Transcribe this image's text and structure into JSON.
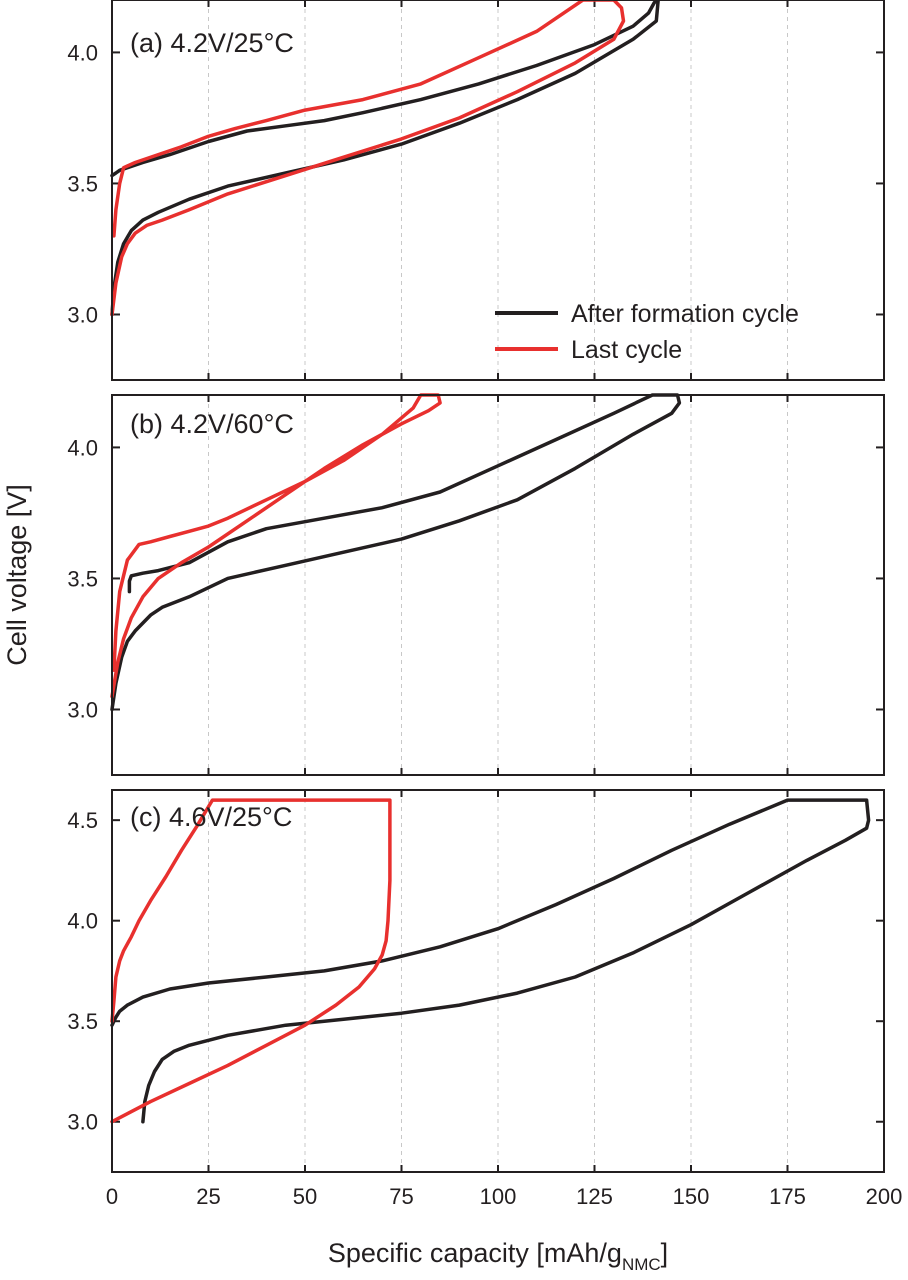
{
  "figure": {
    "ylabel": "Cell voltage [V]",
    "xlabel_main": "Specific capacity [mAh/g",
    "xlabel_subscript": "NMC",
    "xlabel_close": "]"
  },
  "legend": {
    "items": [
      {
        "label": "After formation cycle",
        "color": "#231f20"
      },
      {
        "label": "Last cycle",
        "color": "#e8302e"
      }
    ]
  },
  "colors": {
    "after_formation": "#231f20",
    "last": "#e8302e",
    "grid": "#c8c8c8",
    "frame": "#231f20"
  },
  "chart_data": [
    {
      "type": "line",
      "panel": "a",
      "title": "(a) 4.2V/25°C",
      "xlabel": "Specific capacity [mAh/gNMC]",
      "ylabel": "Cell voltage [V]",
      "xlim": [
        0,
        200
      ],
      "ylim": [
        2.75,
        4.2
      ],
      "yticks": [
        3.0,
        3.5,
        4.0
      ],
      "ytick_labels": [
        "3.0",
        "3.5",
        "4.0"
      ],
      "xgrid": [
        25,
        50,
        75,
        100,
        125,
        150,
        175
      ],
      "series": [
        {
          "name": "After formation cycle",
          "color": "#231f20",
          "x": [
            0,
            0.5,
            1.5,
            3,
            5,
            8,
            12,
            20,
            30,
            45,
            60,
            75,
            90,
            105,
            120,
            135,
            141,
            141.5,
            140.5,
            139,
            135,
            125,
            110,
            95,
            80,
            65,
            55,
            45,
            35,
            25,
            15,
            8,
            4,
            2,
            1,
            0
          ],
          "y": [
            3.0,
            3.1,
            3.2,
            3.27,
            3.32,
            3.36,
            3.39,
            3.44,
            3.49,
            3.54,
            3.59,
            3.65,
            3.73,
            3.82,
            3.92,
            4.05,
            4.12,
            4.2,
            4.19,
            4.15,
            4.1,
            4.03,
            3.95,
            3.88,
            3.82,
            3.77,
            3.74,
            3.72,
            3.7,
            3.66,
            3.61,
            3.58,
            3.56,
            3.55,
            3.54,
            3.53
          ]
        },
        {
          "name": "Last cycle",
          "color": "#e8302e",
          "x": [
            0,
            1,
            2.5,
            4,
            6,
            9,
            13,
            20,
            30,
            45,
            60,
            75,
            90,
            105,
            120,
            130,
            132.5,
            132,
            130,
            123,
            122,
            110,
            95,
            80,
            65,
            50,
            40,
            32,
            25,
            18,
            12,
            6,
            3,
            2,
            1,
            0.5
          ],
          "y": [
            3.0,
            3.12,
            3.22,
            3.27,
            3.31,
            3.34,
            3.36,
            3.4,
            3.46,
            3.53,
            3.6,
            3.67,
            3.75,
            3.85,
            3.96,
            4.05,
            4.12,
            4.17,
            4.2,
            4.2,
            4.2,
            4.08,
            3.98,
            3.88,
            3.82,
            3.78,
            3.74,
            3.71,
            3.68,
            3.64,
            3.61,
            3.58,
            3.56,
            3.5,
            3.4,
            3.3
          ]
        }
      ],
      "legend": "right"
    },
    {
      "type": "line",
      "panel": "b",
      "title": "(b) 4.2V/60°C",
      "xlabel": "Specific capacity [mAh/gNMC]",
      "ylabel": "Cell voltage [V]",
      "xlim": [
        0,
        200
      ],
      "ylim": [
        2.75,
        4.2
      ],
      "yticks": [
        3.0,
        3.5,
        4.0
      ],
      "ytick_labels": [
        "3.0",
        "3.5",
        "4.0"
      ],
      "xgrid": [
        25,
        50,
        75,
        100,
        125,
        150,
        175
      ],
      "series": [
        {
          "name": "After formation cycle",
          "color": "#231f20",
          "x": [
            0,
            1,
            2.5,
            4,
            6,
            8,
            10,
            13,
            20,
            30,
            45,
            60,
            75,
            90,
            105,
            120,
            135,
            145,
            147,
            146.5,
            144,
            140,
            130,
            115,
            100,
            85,
            70,
            55,
            40,
            30,
            20,
            12,
            8,
            5,
            4.5,
            4.5
          ],
          "y": [
            3.0,
            3.1,
            3.2,
            3.26,
            3.3,
            3.33,
            3.36,
            3.39,
            3.43,
            3.5,
            3.55,
            3.6,
            3.65,
            3.72,
            3.8,
            3.92,
            4.05,
            4.13,
            4.17,
            4.2,
            4.2,
            4.2,
            4.13,
            4.03,
            3.93,
            3.83,
            3.77,
            3.73,
            3.69,
            3.64,
            3.56,
            3.53,
            3.52,
            3.51,
            3.49,
            3.45
          ]
        },
        {
          "name": "Last cycle",
          "color": "#e8302e",
          "x": [
            0,
            1.5,
            3,
            5,
            8,
            12,
            18,
            25,
            35,
            45,
            55,
            65,
            75,
            82,
            85,
            84.5,
            82,
            80,
            78,
            70,
            60,
            50,
            40,
            30,
            25,
            20,
            15,
            10,
            7,
            4,
            2,
            1,
            0.5
          ],
          "y": [
            3.05,
            3.18,
            3.27,
            3.35,
            3.43,
            3.5,
            3.56,
            3.62,
            3.72,
            3.82,
            3.92,
            4.01,
            4.09,
            4.14,
            4.17,
            4.2,
            4.2,
            4.2,
            4.15,
            4.05,
            3.95,
            3.87,
            3.8,
            3.73,
            3.7,
            3.68,
            3.66,
            3.64,
            3.63,
            3.57,
            3.45,
            3.3,
            3.15
          ]
        }
      ],
      "legend": "none"
    },
    {
      "type": "line",
      "panel": "c",
      "title": "(c) 4.6V/25°C",
      "xlabel": "Specific capacity [mAh/gNMC]",
      "ylabel": "Cell voltage [V]",
      "xlim": [
        0,
        200
      ],
      "ylim": [
        2.75,
        4.65
      ],
      "yticks": [
        3.0,
        3.5,
        4.0,
        4.5
      ],
      "ytick_labels": [
        "3.0",
        "3.5",
        "4.0",
        "4.5"
      ],
      "xticks": [
        0,
        25,
        50,
        75,
        100,
        125,
        150,
        175,
        200
      ],
      "xtick_labels": [
        "0",
        "25",
        "50",
        "75",
        "100",
        "125",
        "150",
        "175",
        "200"
      ],
      "xgrid": [
        25,
        50,
        75,
        100,
        125,
        150,
        175
      ],
      "series": [
        {
          "name": "After formation cycle",
          "color": "#231f20",
          "x": [
            8,
            8.5,
            9.5,
            11,
            13,
            16,
            20,
            30,
            45,
            60,
            75,
            90,
            105,
            120,
            135,
            150,
            165,
            180,
            190,
            195.5,
            196,
            195.5,
            192,
            185,
            175,
            160,
            145,
            130,
            115,
            100,
            85,
            70,
            55,
            40,
            25,
            15,
            8,
            4,
            2,
            1,
            0.5,
            0
          ],
          "y": [
            3.0,
            3.1,
            3.18,
            3.25,
            3.31,
            3.35,
            3.38,
            3.43,
            3.48,
            3.51,
            3.54,
            3.58,
            3.64,
            3.72,
            3.84,
            3.98,
            4.14,
            4.3,
            4.4,
            4.46,
            4.5,
            4.6,
            4.6,
            4.6,
            4.6,
            4.48,
            4.35,
            4.21,
            4.08,
            3.96,
            3.87,
            3.8,
            3.75,
            3.72,
            3.69,
            3.66,
            3.62,
            3.58,
            3.55,
            3.52,
            3.5,
            3.48
          ]
        },
        {
          "name": "Last cycle",
          "color": "#e8302e",
          "x": [
            0,
            10,
            20,
            30,
            40,
            50,
            58,
            64,
            68,
            70,
            71,
            71.5,
            72,
            72,
            70,
            60,
            45,
            35,
            26,
            22,
            18,
            14,
            10,
            7,
            5,
            3,
            2,
            1,
            0.5,
            0
          ],
          "y": [
            3.0,
            3.1,
            3.19,
            3.28,
            3.38,
            3.48,
            3.58,
            3.67,
            3.76,
            3.83,
            3.9,
            4.0,
            4.2,
            4.6,
            4.6,
            4.6,
            4.6,
            4.6,
            4.6,
            4.47,
            4.35,
            4.22,
            4.1,
            4.0,
            3.92,
            3.85,
            3.8,
            3.72,
            3.6,
            3.5
          ]
        }
      ],
      "legend": "none"
    }
  ]
}
